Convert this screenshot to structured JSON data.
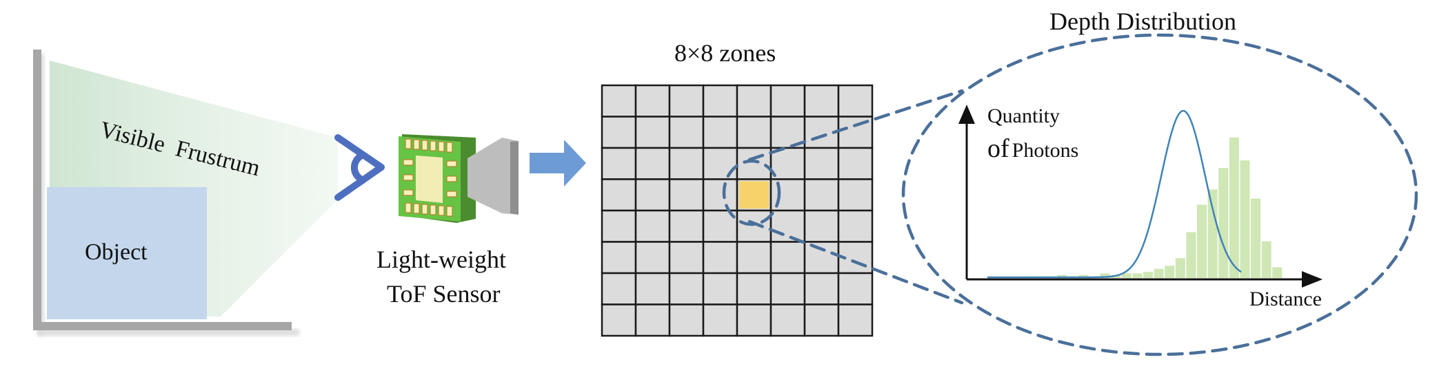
{
  "scene": {
    "object_label": "Object",
    "frustum_label": "Visible  Frustrum"
  },
  "sensor": {
    "label_line1": "Light-weight",
    "label_line2": "ToF Sensor"
  },
  "zones": {
    "title": "8×8 zones",
    "rows": 8,
    "cols": 8,
    "highlighted_row": 3,
    "highlighted_col": 4,
    "cell_color": "#dcdcdc",
    "highlight_color": "#f7d26a"
  },
  "depth": {
    "title": "Depth Distribution",
    "ylabel_line1": "Quantity",
    "ylabel_line2_of": "of",
    "ylabel_line2_rest": "Photons",
    "xlabel": "Distance"
  },
  "colors": {
    "dashed": "#4a6f9a",
    "arrow": "#6d9bd6",
    "eye": "#4e6fbf",
    "object": "#c3d6ec",
    "wall": "#a6a6a6",
    "frustum": "#d3e6d5",
    "hist": "#cfe7b4",
    "curve": "#3f82b6"
  },
  "chart_data": {
    "type": "bar",
    "title": "Depth Distribution",
    "xlabel": "Distance",
    "ylabel": "Quantity of Photons",
    "values": [
      0,
      0,
      0,
      0,
      0,
      1,
      1,
      2,
      1,
      2,
      1,
      3,
      2,
      3,
      3,
      4,
      6,
      8,
      13,
      30,
      48,
      58,
      72,
      92,
      77,
      52,
      24,
      7
    ],
    "ylim": [
      0,
      100
    ],
    "grid": false,
    "overlay_curve": "gaussian fit"
  }
}
